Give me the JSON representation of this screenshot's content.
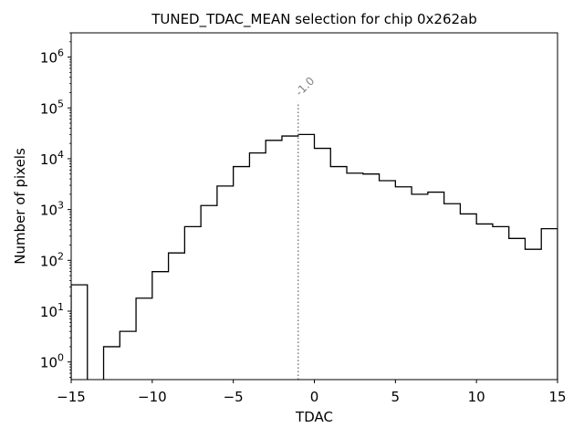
{
  "chart_data": {
    "type": "histogram",
    "title": "TUNED_TDAC_MEAN selection for chip 0x262ab",
    "xlabel": "TDAC",
    "ylabel": "Number of pixels",
    "xlim": [
      -15,
      15
    ],
    "ylim": [
      0.45,
      3000000
    ],
    "yscale": "log",
    "grid": false,
    "x_ticks": [
      -15,
      -10,
      -5,
      0,
      5,
      10,
      15
    ],
    "x_tick_labels": [
      "−15",
      "−10",
      "−5",
      "0",
      "5",
      "10",
      "15"
    ],
    "y_tick_exponents": [
      0,
      1,
      2,
      3,
      4,
      5,
      6
    ],
    "bin_edges": [
      -15,
      -14,
      -13,
      -12,
      -11,
      -10,
      -9,
      -8,
      -7,
      -6,
      -5,
      -4,
      -3,
      -2,
      -1,
      0,
      1,
      2,
      3,
      4,
      5,
      6,
      7,
      8,
      9,
      10,
      11,
      12,
      13,
      14,
      15
    ],
    "counts": [
      33,
      0,
      2,
      4,
      18,
      60,
      140,
      460,
      1200,
      2900,
      7000,
      13000,
      23000,
      28000,
      30000,
      16000,
      7000,
      5200,
      5000,
      3700,
      2800,
      2000,
      2200,
      1300,
      820,
      520,
      460,
      270,
      165,
      420
    ],
    "line_color": "#000000",
    "marker": {
      "x": -1.0,
      "label": "-1.0",
      "style": "dotted",
      "color": "#7f7f7f",
      "top_value": 130000
    }
  }
}
